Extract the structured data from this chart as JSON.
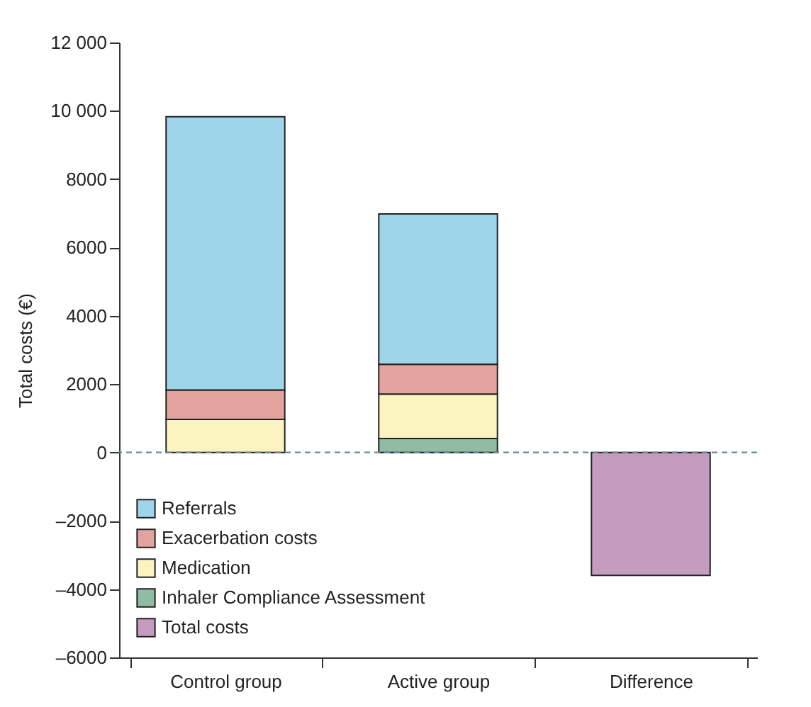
{
  "chart_data": {
    "type": "bar",
    "stacked": true,
    "ylabel": "Total costs (€)",
    "categories": [
      "Control group",
      "Active group",
      "Difference"
    ],
    "series": [
      {
        "name": "Total costs",
        "color": "#c69bc0",
        "values": [
          null,
          null,
          -3600
        ]
      },
      {
        "name": "Inhaler Compliance Assessment",
        "color": "#8fbca2",
        "values": [
          null,
          410,
          null
        ]
      },
      {
        "name": "Medication",
        "color": "#fcf4c0",
        "values": [
          970,
          1300,
          null
        ]
      },
      {
        "name": "Exacerbation costs",
        "color": "#e3a4a0",
        "values": [
          860,
          870,
          null
        ]
      },
      {
        "name": "Referrals",
        "color": "#9ed5e8",
        "values": [
          8000,
          4400,
          null
        ]
      }
    ],
    "ylim": [
      -6000,
      12000
    ],
    "yticks": [
      {
        "value": -6000,
        "label": "–6000"
      },
      {
        "value": -4000,
        "label": "–4000"
      },
      {
        "value": -2000,
        "label": "–2000"
      },
      0,
      2000,
      4000,
      6000,
      8000,
      {
        "value": 10000,
        "label": "10 000"
      },
      {
        "value": 12000,
        "label": "12 000"
      }
    ],
    "ref_lines": [
      {
        "axis": "y",
        "value": 0,
        "color": "#6a8a9a",
        "line_style": "dashed"
      }
    ],
    "legend": "bottom left",
    "grid": false
  }
}
